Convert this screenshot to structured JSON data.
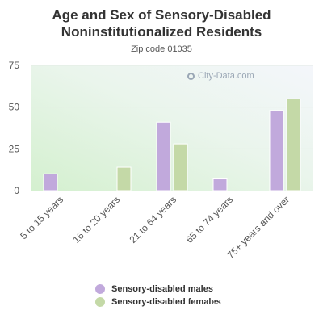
{
  "chart_data": {
    "type": "bar",
    "title": "Age and Sex of Sensory-Disabled Noninstitutionalized Residents",
    "subtitle": "Zip code 01035",
    "categories": [
      "5 to 15 years",
      "16 to 20 years",
      "21 to 64 years",
      "65 to 74 years",
      "75+ years and over"
    ],
    "series": [
      {
        "name": "Sensory-disabled males",
        "color": "#c1a9dc",
        "values": [
          10,
          0,
          41,
          7,
          48
        ]
      },
      {
        "name": "Sensory-disabled females",
        "color": "#c4d9a7",
        "values": [
          0,
          14,
          28,
          0,
          55
        ]
      }
    ],
    "yticks": [
      0,
      25,
      50,
      75
    ],
    "ylim": [
      0,
      75
    ],
    "grid": true,
    "legend": "bottom"
  },
  "watermark": "City-Data.com"
}
